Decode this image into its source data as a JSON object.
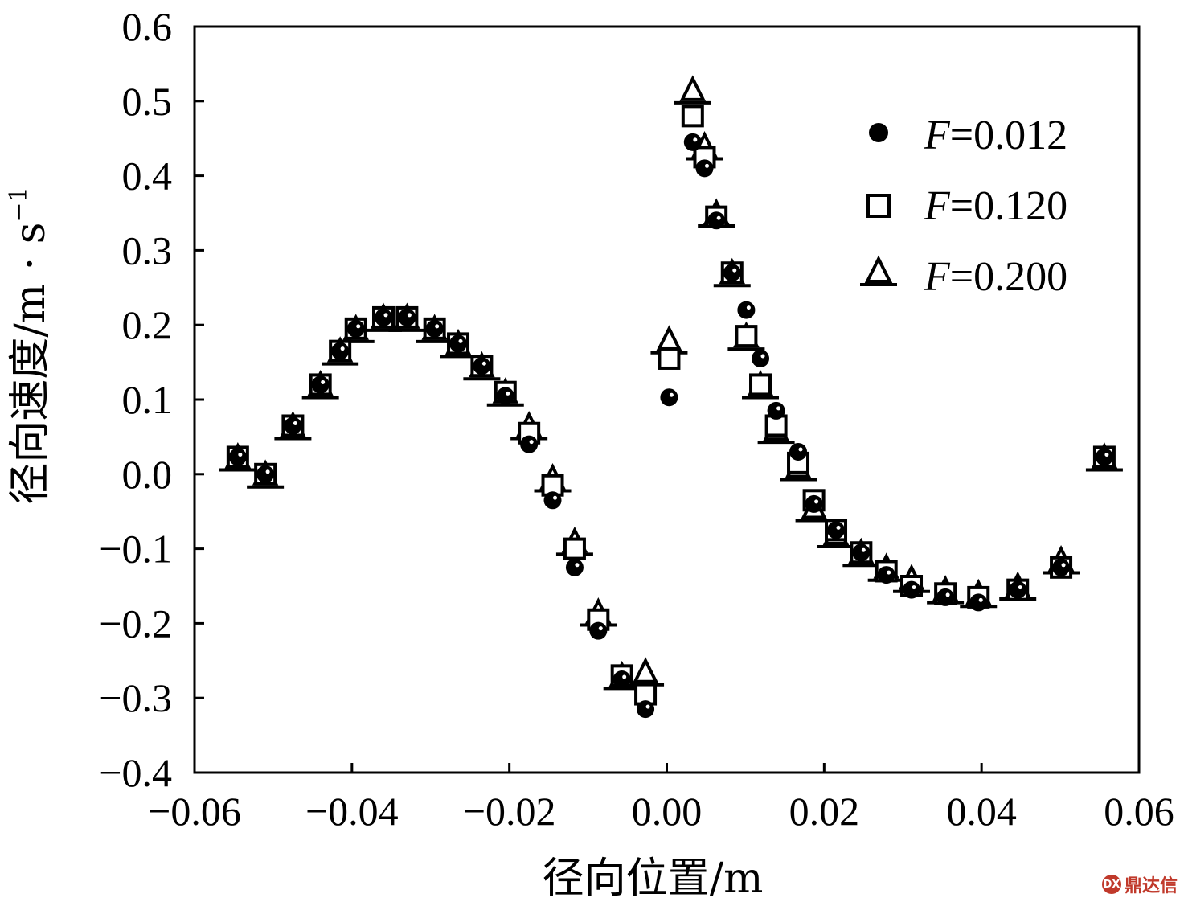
{
  "chart_data": {
    "type": "scatter",
    "xlabel": "径向位置/m",
    "ylabel": "径向速度/m · s",
    "ylabel_sup": "−1",
    "xlim": [
      -0.06,
      0.06
    ],
    "ylim": [
      -0.4,
      0.6
    ],
    "x_ticks": [
      "−0.06",
      "−0.04",
      "−0.02",
      "0.00",
      "0.02",
      "0.04",
      "0.06"
    ],
    "y_ticks": [
      "−0.4",
      "−0.3",
      "−0.2",
      "−0.1",
      "0.0",
      "0.1",
      "0.2",
      "0.3",
      "0.4",
      "0.5",
      "0.6"
    ],
    "legend_position": "top-right",
    "series": [
      {
        "name": "F=0.012",
        "marker": "filled-circle",
        "points": [
          [
            -0.0545,
            0.023
          ],
          [
            -0.051,
            0.0
          ],
          [
            -0.0475,
            0.065
          ],
          [
            -0.044,
            0.12
          ],
          [
            -0.0415,
            0.165
          ],
          [
            -0.0395,
            0.195
          ],
          [
            -0.036,
            0.21
          ],
          [
            -0.033,
            0.21
          ],
          [
            -0.0295,
            0.195
          ],
          [
            -0.0265,
            0.175
          ],
          [
            -0.0235,
            0.145
          ],
          [
            -0.0205,
            0.105
          ],
          [
            -0.0175,
            0.04
          ],
          [
            -0.0145,
            -0.035
          ],
          [
            -0.0117,
            -0.125
          ],
          [
            -0.0087,
            -0.21
          ],
          [
            -0.0057,
            -0.275
          ],
          [
            -0.0027,
            -0.315
          ],
          [
            0.0003,
            0.103
          ],
          [
            0.0033,
            0.445
          ],
          [
            0.0048,
            0.41
          ],
          [
            0.0063,
            0.34
          ],
          [
            0.0083,
            0.27
          ],
          [
            0.0101,
            0.22
          ],
          [
            0.0119,
            0.155
          ],
          [
            0.0139,
            0.085
          ],
          [
            0.0167,
            0.03
          ],
          [
            0.0187,
            -0.04
          ],
          [
            0.0215,
            -0.075
          ],
          [
            0.0247,
            -0.105
          ],
          [
            0.0279,
            -0.135
          ],
          [
            0.0311,
            -0.155
          ],
          [
            0.0354,
            -0.165
          ],
          [
            0.0396,
            -0.172
          ],
          [
            0.0446,
            -0.155
          ],
          [
            0.0501,
            -0.125
          ],
          [
            0.0556,
            0.023
          ]
        ]
      },
      {
        "name": "F=0.120",
        "marker": "open-square",
        "points": [
          [
            -0.0545,
            0.023
          ],
          [
            -0.051,
            0.0
          ],
          [
            -0.0475,
            0.065
          ],
          [
            -0.044,
            0.12
          ],
          [
            -0.0415,
            0.165
          ],
          [
            -0.0395,
            0.195
          ],
          [
            -0.036,
            0.21
          ],
          [
            -0.033,
            0.21
          ],
          [
            -0.0295,
            0.195
          ],
          [
            -0.0265,
            0.175
          ],
          [
            -0.0235,
            0.145
          ],
          [
            -0.0205,
            0.11
          ],
          [
            -0.0175,
            0.055
          ],
          [
            -0.0145,
            -0.015
          ],
          [
            -0.0117,
            -0.1
          ],
          [
            -0.0087,
            -0.195
          ],
          [
            -0.0057,
            -0.27
          ],
          [
            -0.0027,
            -0.295
          ],
          [
            0.0003,
            0.155
          ],
          [
            0.0033,
            0.48
          ],
          [
            0.0048,
            0.425
          ],
          [
            0.0063,
            0.345
          ],
          [
            0.0083,
            0.27
          ],
          [
            0.0101,
            0.185
          ],
          [
            0.0119,
            0.12
          ],
          [
            0.0139,
            0.065
          ],
          [
            0.0167,
            0.015
          ],
          [
            0.0187,
            -0.035
          ],
          [
            0.0215,
            -0.075
          ],
          [
            0.0247,
            -0.105
          ],
          [
            0.0279,
            -0.13
          ],
          [
            0.0311,
            -0.15
          ],
          [
            0.0354,
            -0.16
          ],
          [
            0.0396,
            -0.165
          ],
          [
            0.0446,
            -0.155
          ],
          [
            0.0501,
            -0.125
          ],
          [
            0.0556,
            0.023
          ]
        ]
      },
      {
        "name": "F=0.200",
        "marker": "open-triangle",
        "points": [
          [
            -0.0545,
            0.023
          ],
          [
            -0.051,
            0.0
          ],
          [
            -0.0475,
            0.065
          ],
          [
            -0.044,
            0.12
          ],
          [
            -0.0415,
            0.165
          ],
          [
            -0.0395,
            0.195
          ],
          [
            -0.036,
            0.21
          ],
          [
            -0.033,
            0.21
          ],
          [
            -0.0295,
            0.195
          ],
          [
            -0.0265,
            0.175
          ],
          [
            -0.0235,
            0.145
          ],
          [
            -0.0205,
            0.11
          ],
          [
            -0.0175,
            0.065
          ],
          [
            -0.0145,
            -0.005
          ],
          [
            -0.0117,
            -0.09
          ],
          [
            -0.0087,
            -0.185
          ],
          [
            -0.0057,
            -0.27
          ],
          [
            -0.0027,
            -0.265
          ],
          [
            0.0003,
            0.18
          ],
          [
            0.0033,
            0.515
          ],
          [
            0.0048,
            0.44
          ],
          [
            0.0063,
            0.35
          ],
          [
            0.0083,
            0.27
          ],
          [
            0.0101,
            0.185
          ],
          [
            0.0119,
            0.12
          ],
          [
            0.0139,
            0.06
          ],
          [
            0.0167,
            0.01
          ],
          [
            0.0187,
            -0.045
          ],
          [
            0.0215,
            -0.08
          ],
          [
            0.0247,
            -0.105
          ],
          [
            0.0279,
            -0.125
          ],
          [
            0.0311,
            -0.14
          ],
          [
            0.0354,
            -0.155
          ],
          [
            0.0396,
            -0.16
          ],
          [
            0.0446,
            -0.15
          ],
          [
            0.0501,
            -0.115
          ],
          [
            0.0556,
            0.023
          ]
        ]
      }
    ]
  },
  "legend": [
    {
      "italic": "F",
      "rest": "=0.012"
    },
    {
      "italic": "F",
      "rest": "=0.120"
    },
    {
      "italic": "F",
      "rest": "=0.200"
    }
  ],
  "watermark": {
    "logo": "DX",
    "text": "鼎达信"
  }
}
